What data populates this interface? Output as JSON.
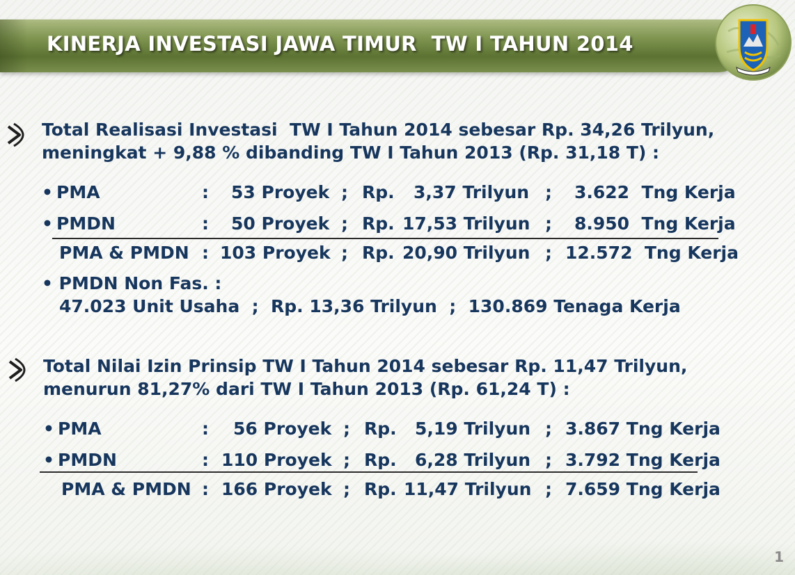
{
  "slide": {
    "title": "KINERJA INVESTASI JAWA TIMUR  TW I TAHUN 2014",
    "page_number": "1"
  },
  "section1": {
    "heading_line1": "Total Realisasi Investasi  TW I Tahun 2014 sebesar Rp. 34,26 Trilyun,",
    "heading_line2": "meningkat + 9,88 % dibanding TW I Tahun 2013 (Rp. 31,18 T) :",
    "rows": [
      {
        "bullet": "•",
        "label": "PMA",
        "colon": ":",
        "proyek": "53 Proyek",
        "sep1": ";",
        "rp": "Rp.",
        "nilai": "3,37 Trilyun",
        "sep2": ";",
        "tenaga": "3.622  Tng Kerja"
      },
      {
        "bullet": "•",
        "label": "PMDN",
        "colon": ":",
        "proyek": "50 Proyek",
        "sep1": ";",
        "rp": "Rp.",
        "nilai": "17,53 Trilyun",
        "sep2": ";",
        "tenaga": "8.950  Tng Kerja"
      }
    ],
    "total": {
      "label": "PMA & PMDN",
      "colon": ":",
      "proyek": "103 Proyek",
      "sep1": ";",
      "rp": "Rp.",
      "nilai": "20,90 Trilyun",
      "sep2": ";",
      "tenaga": "12.572  Tng Kerja"
    },
    "nonfas_label": "• PMDN Non Fas. :",
    "nonfas_detail": "47.023 Unit Usaha  ;  Rp. 13,36 Trilyun  ;  130.869 Tenaga Kerja"
  },
  "section2": {
    "heading_line1": "Total Nilai Izin Prinsip TW I Tahun 2014 sebesar Rp. 11,47 Trilyun,",
    "heading_line2": "menurun 81,27% dari TW I Tahun 2013 (Rp. 61,24 T) :",
    "rows": [
      {
        "bullet": "•",
        "label": "PMA",
        "colon": ":",
        "proyek": "56 Proyek",
        "sep1": ";",
        "rp": "Rp.",
        "nilai": "5,19 Trilyun",
        "sep2": ";",
        "tenaga": "3.867 Tng Kerja"
      },
      {
        "bullet": "•",
        "label": "PMDN",
        "colon": ":",
        "proyek": "110 Proyek",
        "sep1": ";",
        "rp": "Rp.",
        "nilai": "6,28 Trilyun",
        "sep2": ";",
        "tenaga": "3.792 Tng Kerja"
      }
    ],
    "total": {
      "label": "PMA & PMDN",
      "colon": ":",
      "proyek": "166 Proyek",
      "sep1": ";",
      "rp": "Rp.",
      "nilai": "11,47 Trilyun",
      "sep2": ";",
      "tenaga": "7.659 Tng Kerja"
    }
  },
  "colors": {
    "text": "#17365d",
    "title_bar": "#6d8240",
    "title_text": "#ffffff"
  },
  "icons": {
    "section_bullet": "chevron-right-icon",
    "logo": "east-java-emblem"
  }
}
